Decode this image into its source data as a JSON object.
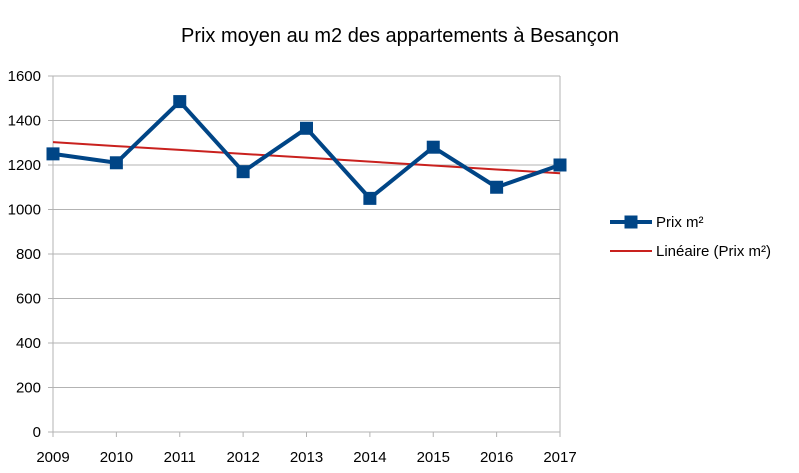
{
  "chart_data": {
    "type": "line",
    "title": "Prix moyen au m2 des appartements à Besançon",
    "xlabel": "",
    "ylabel": "",
    "categories": [
      "2009",
      "2010",
      "2011",
      "2012",
      "2013",
      "2014",
      "2015",
      "2016",
      "2017"
    ],
    "ylim": [
      0,
      1600
    ],
    "yticks": [
      0,
      200,
      400,
      600,
      800,
      1000,
      1200,
      1400,
      1600
    ],
    "grid": true,
    "legend_position": "right",
    "series": [
      {
        "name": "Prix m²",
        "values": [
          1250,
          1210,
          1485,
          1170,
          1365,
          1050,
          1280,
          1100,
          1200
        ],
        "color": "#004586",
        "marker": "square"
      },
      {
        "name": "Linéaire (Prix m²)",
        "values": [
          1303,
          1285,
          1268,
          1250,
          1233,
          1215,
          1198,
          1180,
          1163
        ],
        "color": "#c9211e",
        "marker": "none"
      }
    ]
  }
}
